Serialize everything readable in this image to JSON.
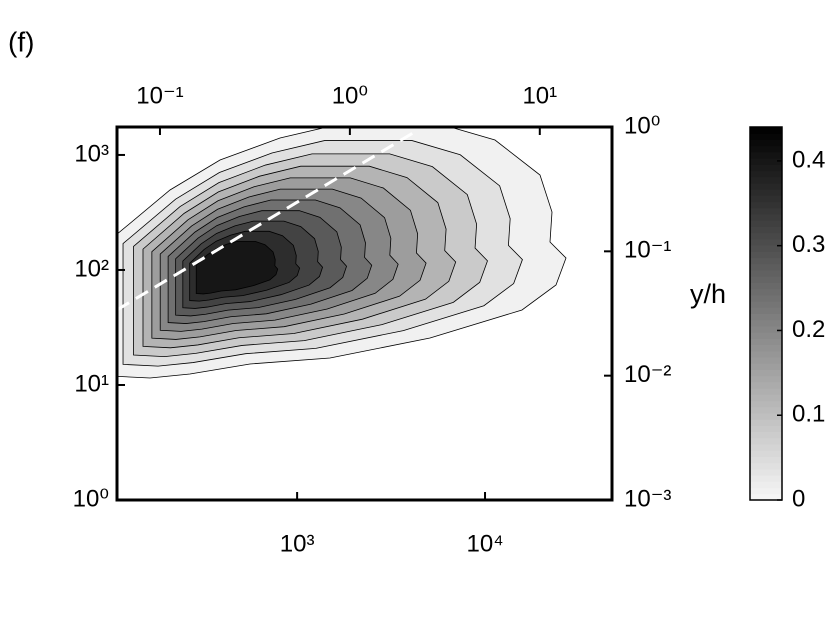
{
  "chart_data": {
    "type": "contour",
    "panel_label": "(f)",
    "y2label": "y/h",
    "log_scale": true,
    "xlim": [
      110,
      47400
    ],
    "xticks": [
      {
        "value": 1000,
        "label": "10³"
      },
      {
        "value": 10000,
        "label": "10⁴"
      }
    ],
    "x2lim": [
      0.0594,
      24
    ],
    "x2ticks": [
      {
        "value": 0.1,
        "label": "10⁻¹"
      },
      {
        "value": 1,
        "label": "10⁰"
      },
      {
        "value": 10,
        "label": "10¹"
      }
    ],
    "ylim": [
      1,
      1750
    ],
    "yticks": [
      {
        "value": 1,
        "label": "10⁰"
      },
      {
        "value": 10,
        "label": "10¹"
      },
      {
        "value": 100,
        "label": "10²"
      },
      {
        "value": 1000,
        "label": "10³"
      }
    ],
    "y2lim": [
      0.001,
      1
    ],
    "y2ticks": [
      {
        "value": 0.001,
        "label": "10⁻³"
      },
      {
        "value": 0.01,
        "label": "10⁻²"
      },
      {
        "value": 0.1,
        "label": "10⁻¹"
      },
      {
        "value": 1,
        "label": "10⁰"
      }
    ],
    "levels": [
      0.01,
      0.04,
      0.08,
      0.12,
      0.16,
      0.2,
      0.24,
      0.28,
      0.32,
      0.36,
      0.4
    ],
    "colorbar": {
      "lim": [
        0,
        0.44
      ],
      "ticks": [
        0,
        0.1,
        0.2,
        0.3,
        0.4
      ],
      "colors": [
        "#f7f7f7",
        "#000000"
      ]
    },
    "reference_line": {
      "x": [
        110,
        4400
      ],
      "y": [
        45,
        1650
      ],
      "color": "#ffffff"
    }
  }
}
